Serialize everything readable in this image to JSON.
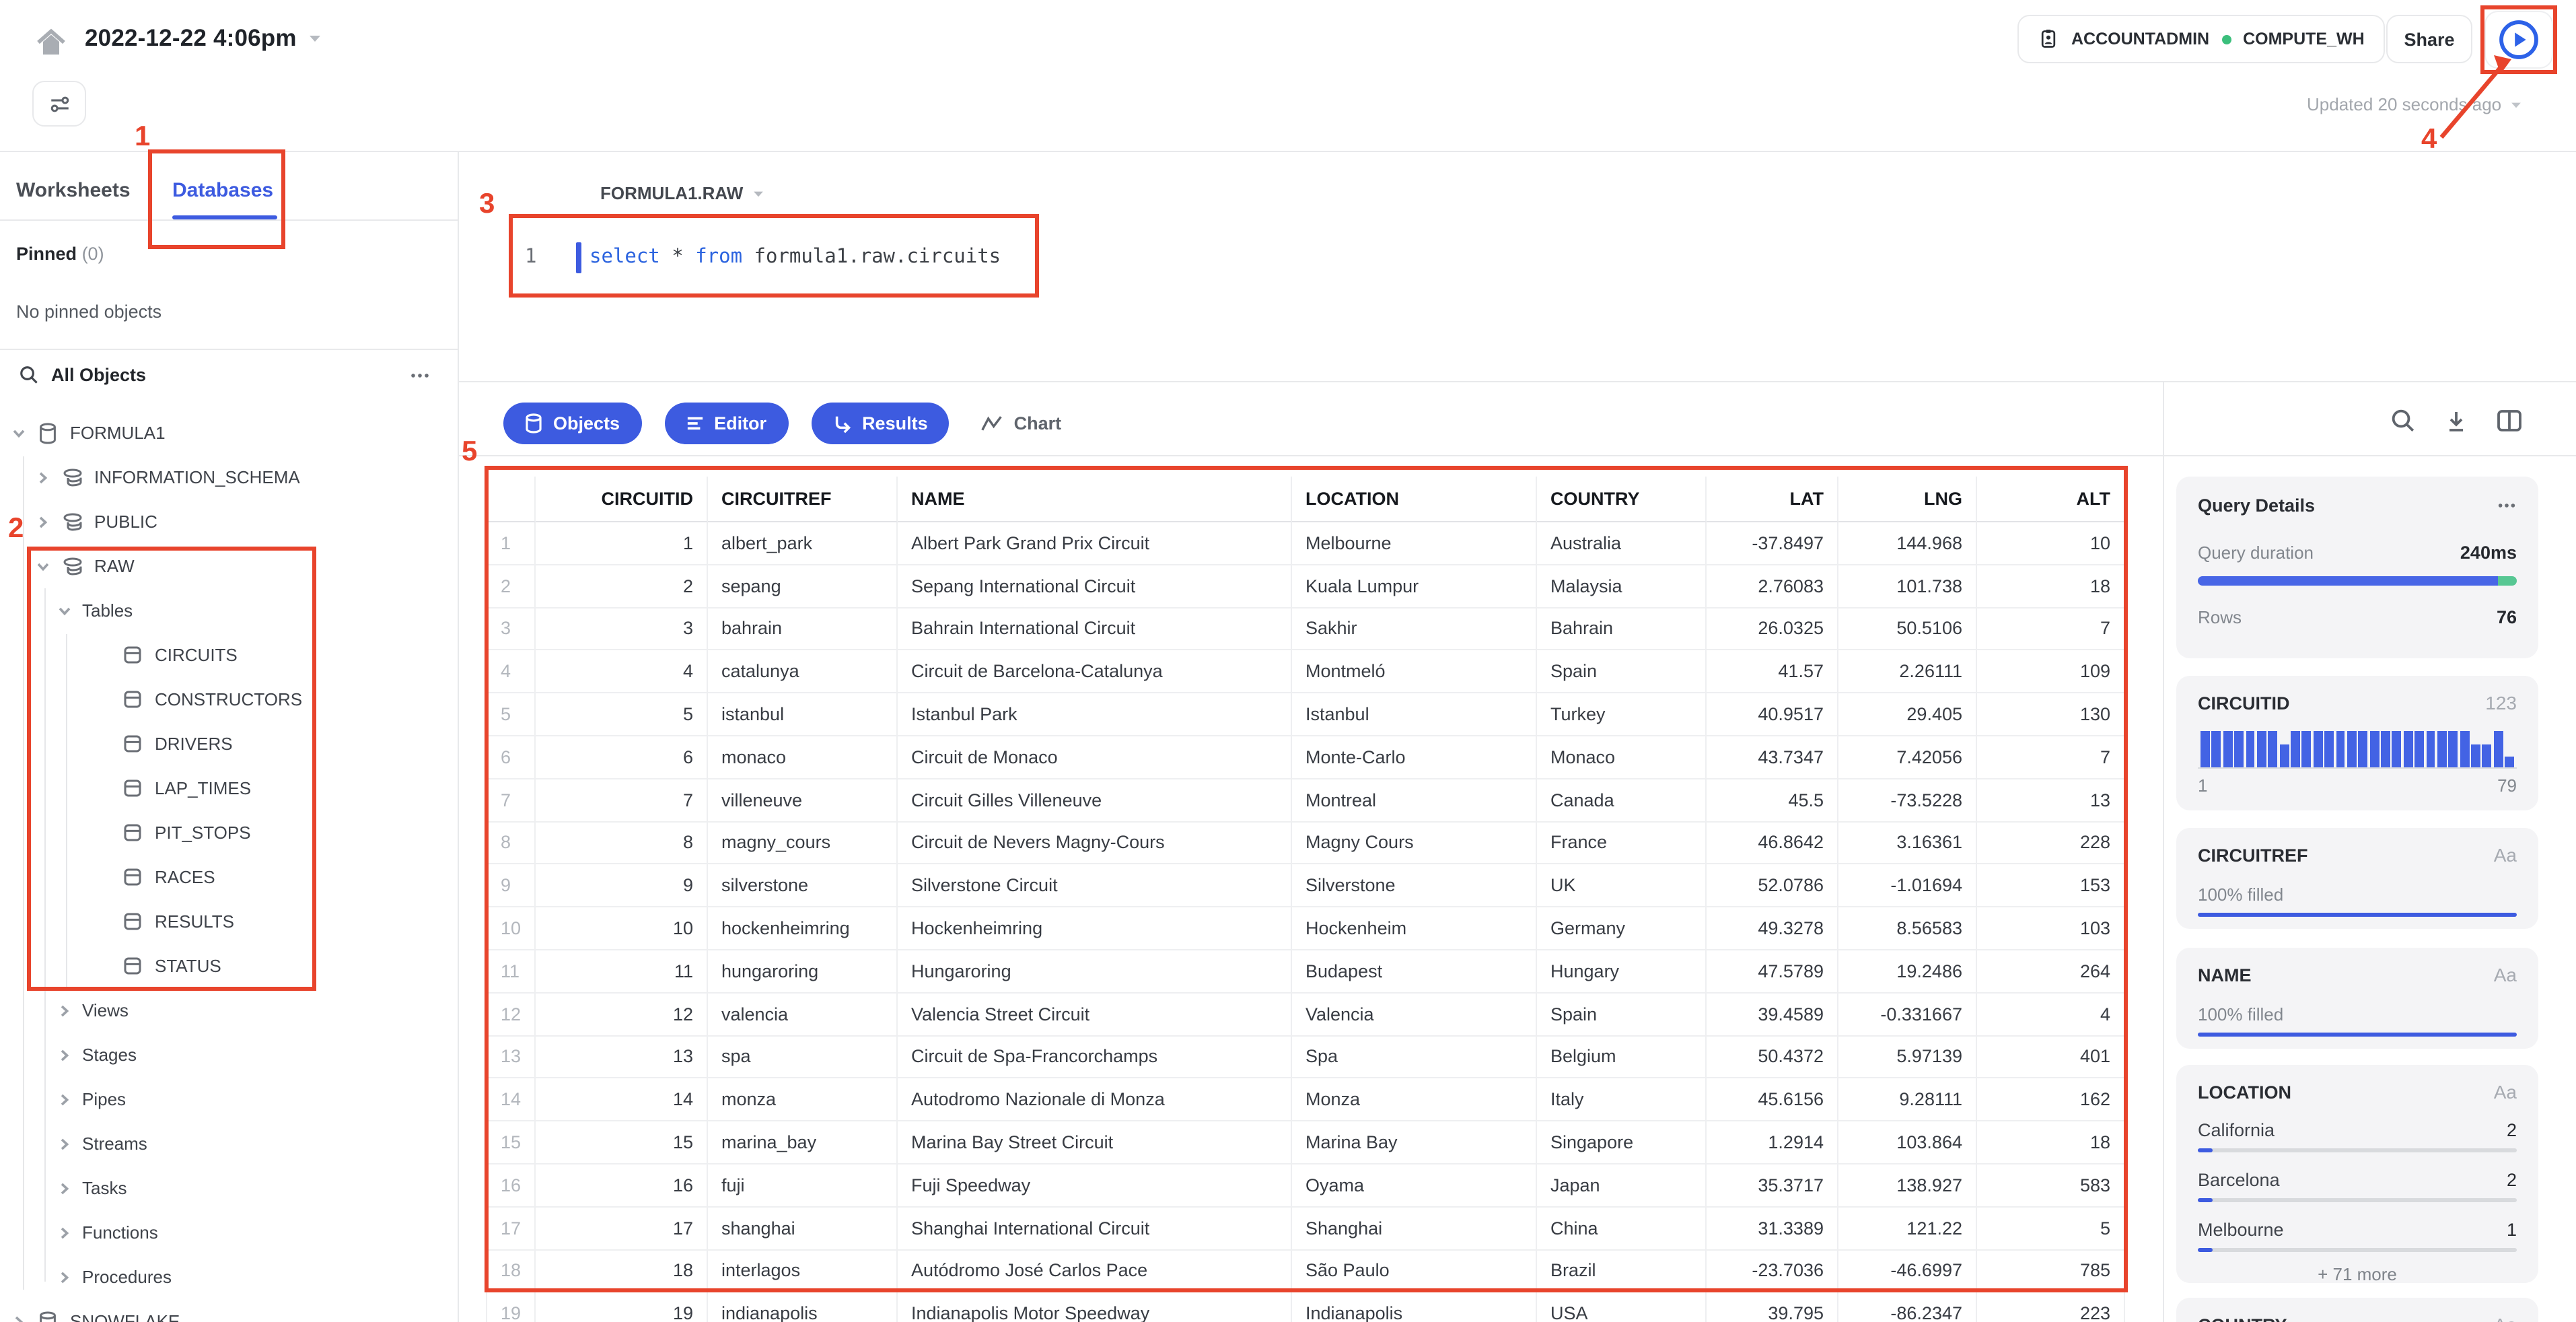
{
  "topbar": {
    "title": "2022-12-22 4:06pm",
    "role": "ACCOUNTADMIN",
    "warehouse": "COMPUTE_WH",
    "share_label": "Share",
    "updated": "Updated 20 seconds ago"
  },
  "sidebar": {
    "tabs": {
      "worksheets": "Worksheets",
      "databases": "Databases"
    },
    "pinned_label": "Pinned",
    "pinned_count": "(0)",
    "empty_text": "No pinned objects",
    "search_label": "All Objects",
    "tree": [
      {
        "label": "FORMULA1",
        "level": 0,
        "icon": "database-icon",
        "chevron": "down"
      },
      {
        "label": "INFORMATION_SCHEMA",
        "level": 1,
        "icon": "schema-icon",
        "chevron": "right"
      },
      {
        "label": "PUBLIC",
        "level": 1,
        "icon": "schema-icon",
        "chevron": "right"
      },
      {
        "label": "RAW",
        "level": 1,
        "icon": "schema-icon",
        "chevron": "down"
      },
      {
        "label": "Tables",
        "level": 2,
        "icon": null,
        "chevron": "down"
      },
      {
        "label": "CIRCUITS",
        "level": 3,
        "icon": "table-icon",
        "chevron": null
      },
      {
        "label": "CONSTRUCTORS",
        "level": 3,
        "icon": "table-icon",
        "chevron": null
      },
      {
        "label": "DRIVERS",
        "level": 3,
        "icon": "table-icon",
        "chevron": null
      },
      {
        "label": "LAP_TIMES",
        "level": 3,
        "icon": "table-icon",
        "chevron": null
      },
      {
        "label": "PIT_STOPS",
        "level": 3,
        "icon": "table-icon",
        "chevron": null
      },
      {
        "label": "RACES",
        "level": 3,
        "icon": "table-icon",
        "chevron": null
      },
      {
        "label": "RESULTS",
        "level": 3,
        "icon": "table-icon",
        "chevron": null
      },
      {
        "label": "STATUS",
        "level": 3,
        "icon": "table-icon",
        "chevron": null
      },
      {
        "label": "Views",
        "level": 2,
        "icon": null,
        "chevron": "right"
      },
      {
        "label": "Stages",
        "level": 2,
        "icon": null,
        "chevron": "right"
      },
      {
        "label": "Pipes",
        "level": 2,
        "icon": null,
        "chevron": "right"
      },
      {
        "label": "Streams",
        "level": 2,
        "icon": null,
        "chevron": "right"
      },
      {
        "label": "Tasks",
        "level": 2,
        "icon": null,
        "chevron": "right"
      },
      {
        "label": "Functions",
        "level": 2,
        "icon": null,
        "chevron": "right"
      },
      {
        "label": "Procedures",
        "level": 2,
        "icon": null,
        "chevron": "right"
      },
      {
        "label": "SNOWFLAKE",
        "level": 0,
        "icon": "database-icon",
        "chevron": "right"
      }
    ]
  },
  "editor": {
    "context": "FORMULA1.RAW",
    "line_number": "1",
    "sql": [
      {
        "t": "select",
        "kw": true
      },
      {
        "t": " * ",
        "kw": false
      },
      {
        "t": "from",
        "kw": true
      },
      {
        "t": " formula1.raw.circuits",
        "kw": false
      }
    ]
  },
  "results": {
    "tabs": [
      {
        "label": "Objects",
        "icon": "database-icon",
        "active": true
      },
      {
        "label": "Editor",
        "icon": "editor-lines-icon",
        "active": true
      },
      {
        "label": "Results",
        "icon": "return-arrow-icon",
        "active": true
      },
      {
        "label": "Chart",
        "icon": "chart-line-icon",
        "active": false
      }
    ],
    "columns": [
      "CIRCUITID",
      "CIRCUITREF",
      "NAME",
      "LOCATION",
      "COUNTRY",
      "LAT",
      "LNG",
      "ALT"
    ],
    "col_align": [
      "right",
      "left",
      "left",
      "left",
      "left",
      "right",
      "right",
      "right"
    ],
    "rows": [
      [
        "1",
        "albert_park",
        "Albert Park Grand Prix Circuit",
        "Melbourne",
        "Australia",
        "-37.8497",
        "144.968",
        "10"
      ],
      [
        "2",
        "sepang",
        "Sepang International Circuit",
        "Kuala Lumpur",
        "Malaysia",
        "2.76083",
        "101.738",
        "18"
      ],
      [
        "3",
        "bahrain",
        "Bahrain International Circuit",
        "Sakhir",
        "Bahrain",
        "26.0325",
        "50.5106",
        "7"
      ],
      [
        "4",
        "catalunya",
        "Circuit de Barcelona-Catalunya",
        "Montmeló",
        "Spain",
        "41.57",
        "2.26111",
        "109"
      ],
      [
        "5",
        "istanbul",
        "Istanbul Park",
        "Istanbul",
        "Turkey",
        "40.9517",
        "29.405",
        "130"
      ],
      [
        "6",
        "monaco",
        "Circuit de Monaco",
        "Monte-Carlo",
        "Monaco",
        "43.7347",
        "7.42056",
        "7"
      ],
      [
        "7",
        "villeneuve",
        "Circuit Gilles Villeneuve",
        "Montreal",
        "Canada",
        "45.5",
        "-73.5228",
        "13"
      ],
      [
        "8",
        "magny_cours",
        "Circuit de Nevers Magny-Cours",
        "Magny Cours",
        "France",
        "46.8642",
        "3.16361",
        "228"
      ],
      [
        "9",
        "silverstone",
        "Silverstone Circuit",
        "Silverstone",
        "UK",
        "52.0786",
        "-1.01694",
        "153"
      ],
      [
        "10",
        "hockenheimring",
        "Hockenheimring",
        "Hockenheim",
        "Germany",
        "49.3278",
        "8.56583",
        "103"
      ],
      [
        "11",
        "hungaroring",
        "Hungaroring",
        "Budapest",
        "Hungary",
        "47.5789",
        "19.2486",
        "264"
      ],
      [
        "12",
        "valencia",
        "Valencia Street Circuit",
        "Valencia",
        "Spain",
        "39.4589",
        "-0.331667",
        "4"
      ],
      [
        "13",
        "spa",
        "Circuit de Spa-Francorchamps",
        "Spa",
        "Belgium",
        "50.4372",
        "5.97139",
        "401"
      ],
      [
        "14",
        "monza",
        "Autodromo Nazionale di Monza",
        "Monza",
        "Italy",
        "45.6156",
        "9.28111",
        "162"
      ],
      [
        "15",
        "marina_bay",
        "Marina Bay Street Circuit",
        "Marina Bay",
        "Singapore",
        "1.2914",
        "103.864",
        "18"
      ],
      [
        "16",
        "fuji",
        "Fuji Speedway",
        "Oyama",
        "Japan",
        "35.3717",
        "138.927",
        "583"
      ],
      [
        "17",
        "shanghai",
        "Shanghai International Circuit",
        "Shanghai",
        "China",
        "31.3389",
        "121.22",
        "5"
      ],
      [
        "18",
        "interlagos",
        "Autódromo José Carlos Pace",
        "São Paulo",
        "Brazil",
        "-23.7036",
        "-46.6997",
        "785"
      ],
      [
        "19",
        "indianapolis",
        "Indianapolis Motor Speedway",
        "Indianapolis",
        "USA",
        "39.795",
        "-86.2347",
        "223"
      ]
    ]
  },
  "query_details": {
    "title": "Query Details",
    "duration_label": "Query duration",
    "duration_value": "240ms",
    "rows_label": "Rows",
    "rows_value": "76",
    "duration_blue_pct": 94,
    "duration_green_pct": 6
  },
  "fields_panel": {
    "circuitid": {
      "title": "CIRCUITID",
      "badge": "123",
      "min": "1",
      "max": "79",
      "bars": [
        1,
        1,
        1,
        1,
        1,
        1,
        1,
        0.62,
        1,
        1,
        1,
        1,
        1,
        1,
        1,
        1,
        1,
        1,
        1,
        1,
        1,
        1,
        1,
        1,
        0.62,
        0.62,
        1,
        0.3
      ]
    },
    "circuitref": {
      "title": "CIRCUITREF",
      "badge": "Aa",
      "filled": "100% filled"
    },
    "name": {
      "title": "NAME",
      "badge": "Aa",
      "filled": "100% filled"
    },
    "location": {
      "title": "LOCATION",
      "badge": "Aa",
      "stats": [
        {
          "label": "California",
          "value": "2"
        },
        {
          "label": "Barcelona",
          "value": "2"
        },
        {
          "label": "Melbourne",
          "value": "1"
        }
      ],
      "more": "+ 71 more"
    },
    "country": {
      "title": "COUNTRY",
      "badge": "Aa"
    }
  },
  "annotations": {
    "n1": "1",
    "n2": "2",
    "n3": "3",
    "n4": "4",
    "n5": "5"
  }
}
